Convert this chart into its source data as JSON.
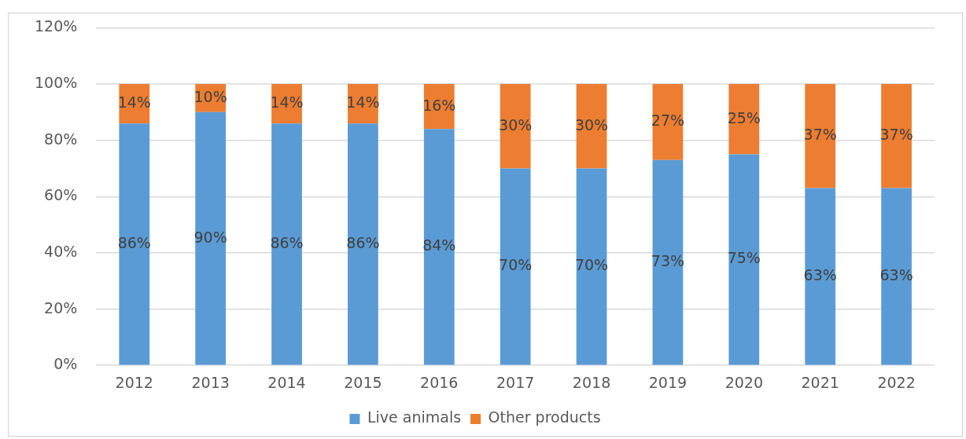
{
  "chart_data": {
    "type": "bar",
    "stacked": true,
    "categories": [
      "2012",
      "2013",
      "2014",
      "2015",
      "2016",
      "2017",
      "2018",
      "2019",
      "2020",
      "2021",
      "2022"
    ],
    "series": [
      {
        "name": "Live animals",
        "color": "#5b9bd5",
        "values": [
          86,
          90,
          86,
          86,
          84,
          70,
          70,
          73,
          75,
          63,
          63
        ],
        "value_labels": [
          "86%",
          "90%",
          "86%",
          "86%",
          "84%",
          "70%",
          "70%",
          "73%",
          "75%",
          "63%",
          "63%"
        ]
      },
      {
        "name": "Other products",
        "color": "#ed7d31",
        "values": [
          14,
          10,
          14,
          14,
          16,
          30,
          30,
          27,
          25,
          37,
          37
        ],
        "value_labels": [
          "14%",
          "10%",
          "14%",
          "14%",
          "16%",
          "30%",
          "30%",
          "27%",
          "25%",
          "37%",
          "37%"
        ]
      }
    ],
    "ylim": [
      0,
      120
    ],
    "yticks": [
      {
        "value": 0,
        "label": "0%"
      },
      {
        "value": 20,
        "label": "20%"
      },
      {
        "value": 40,
        "label": "40%"
      },
      {
        "value": 60,
        "label": "60%"
      },
      {
        "value": 80,
        "label": "80%"
      },
      {
        "value": 100,
        "label": "100%"
      },
      {
        "value": 120,
        "label": "120%"
      }
    ],
    "grid": "y",
    "legend": "bottom"
  }
}
